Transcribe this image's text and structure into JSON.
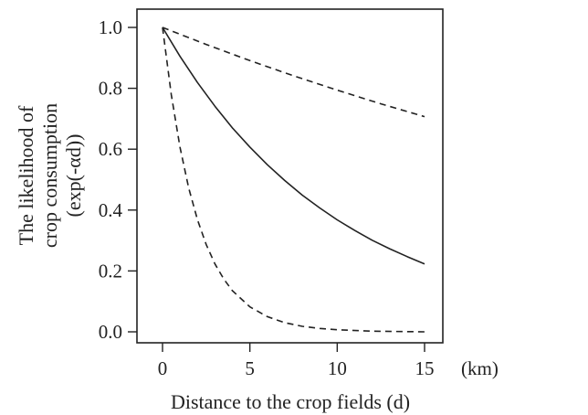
{
  "chart_data": {
    "type": "line",
    "title": "",
    "xlabel": "Distance to the crop fields (d)",
    "xunit": "(km)",
    "ylabel_lines": [
      "The likelihood of",
      "crop consumption",
      "(exp(-αd))"
    ],
    "xlim": [
      0,
      15
    ],
    "ylim": [
      0,
      1
    ],
    "xticks": [
      0,
      5,
      10,
      15
    ],
    "yticks": [
      0.0,
      0.2,
      0.4,
      0.6,
      0.8,
      1.0
    ],
    "xtick_labels": [
      "0",
      "5",
      "10",
      "15"
    ],
    "ytick_labels": [
      "0.0",
      "0.2",
      "0.4",
      "0.6",
      "0.8",
      "1.0"
    ],
    "grid": false,
    "legend": "none",
    "series": [
      {
        "style": "dashed",
        "color": "#222222",
        "x": [
          0,
          2.5,
          5,
          7.5,
          10,
          12.5,
          15
        ],
        "y": [
          1.0,
          0.944,
          0.891,
          0.841,
          0.794,
          0.749,
          0.707
        ]
      },
      {
        "style": "solid",
        "color": "#222222",
        "x": [
          0,
          1,
          2,
          3,
          4,
          5,
          6,
          7,
          8,
          9,
          10,
          11,
          12,
          13,
          14,
          15
        ],
        "y": [
          1.0,
          0.905,
          0.819,
          0.741,
          0.67,
          0.607,
          0.549,
          0.497,
          0.449,
          0.407,
          0.368,
          0.333,
          0.301,
          0.273,
          0.247,
          0.223
        ]
      },
      {
        "style": "dashed",
        "color": "#222222",
        "x": [
          0,
          0.5,
          1,
          1.5,
          2,
          2.5,
          3,
          3.5,
          4,
          5,
          6,
          7,
          8,
          9,
          10,
          12,
          15
        ],
        "y": [
          1.0,
          0.779,
          0.607,
          0.472,
          0.368,
          0.287,
          0.223,
          0.174,
          0.135,
          0.082,
          0.05,
          0.03,
          0.018,
          0.011,
          0.007,
          0.002,
          0.0
        ]
      }
    ]
  }
}
